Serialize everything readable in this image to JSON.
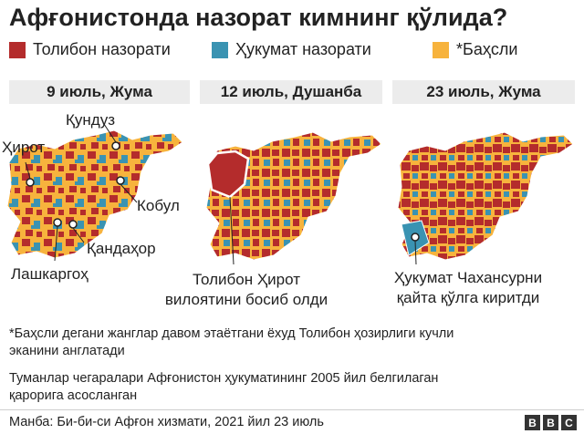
{
  "title": "Афғонистонда назорат кимнинг қўлида?",
  "legend": [
    {
      "label": "Толибон назорати",
      "color": "#b42c2c"
    },
    {
      "label": "Ҳукумат назорати",
      "color": "#3a93b2"
    },
    {
      "label": "*Баҳсли",
      "color": "#f7b33d"
    }
  ],
  "panels": [
    {
      "date": "9 июль, Жума"
    },
    {
      "date": "12 июль, Душанба"
    },
    {
      "date": "23 июль, Жума"
    }
  ],
  "cities": {
    "kunduz": "Қундуз",
    "herat": "Ҳирот",
    "kabul": "Кобул",
    "kandahar": "Қандаҳор",
    "lashkar": "Лашкаргоҳ"
  },
  "captions": {
    "panel2_line1": "Толибон Ҳирот",
    "panel2_line2": "вилоятини босиб олди",
    "panel3_line1": "Ҳукумат Чахансурни",
    "panel3_line2": "қайта қўлга киритди"
  },
  "notes": {
    "note1_line1": "*Баҳсли дегани жанглар давом этаётгани ёхуд Толибон ҳозирлиги кучли",
    "note1_line2": "эканини англатади",
    "note2_line1": "Туманлар чегаралари Афғонистон ҳукуматининг 2005 йил белгилаган",
    "note2_line2": "қарорига асосланган"
  },
  "source": "Манба: Би-би-си Афғон хизмати, 2021 йил 23 июль",
  "logo": [
    "B",
    "B",
    "C"
  ]
}
